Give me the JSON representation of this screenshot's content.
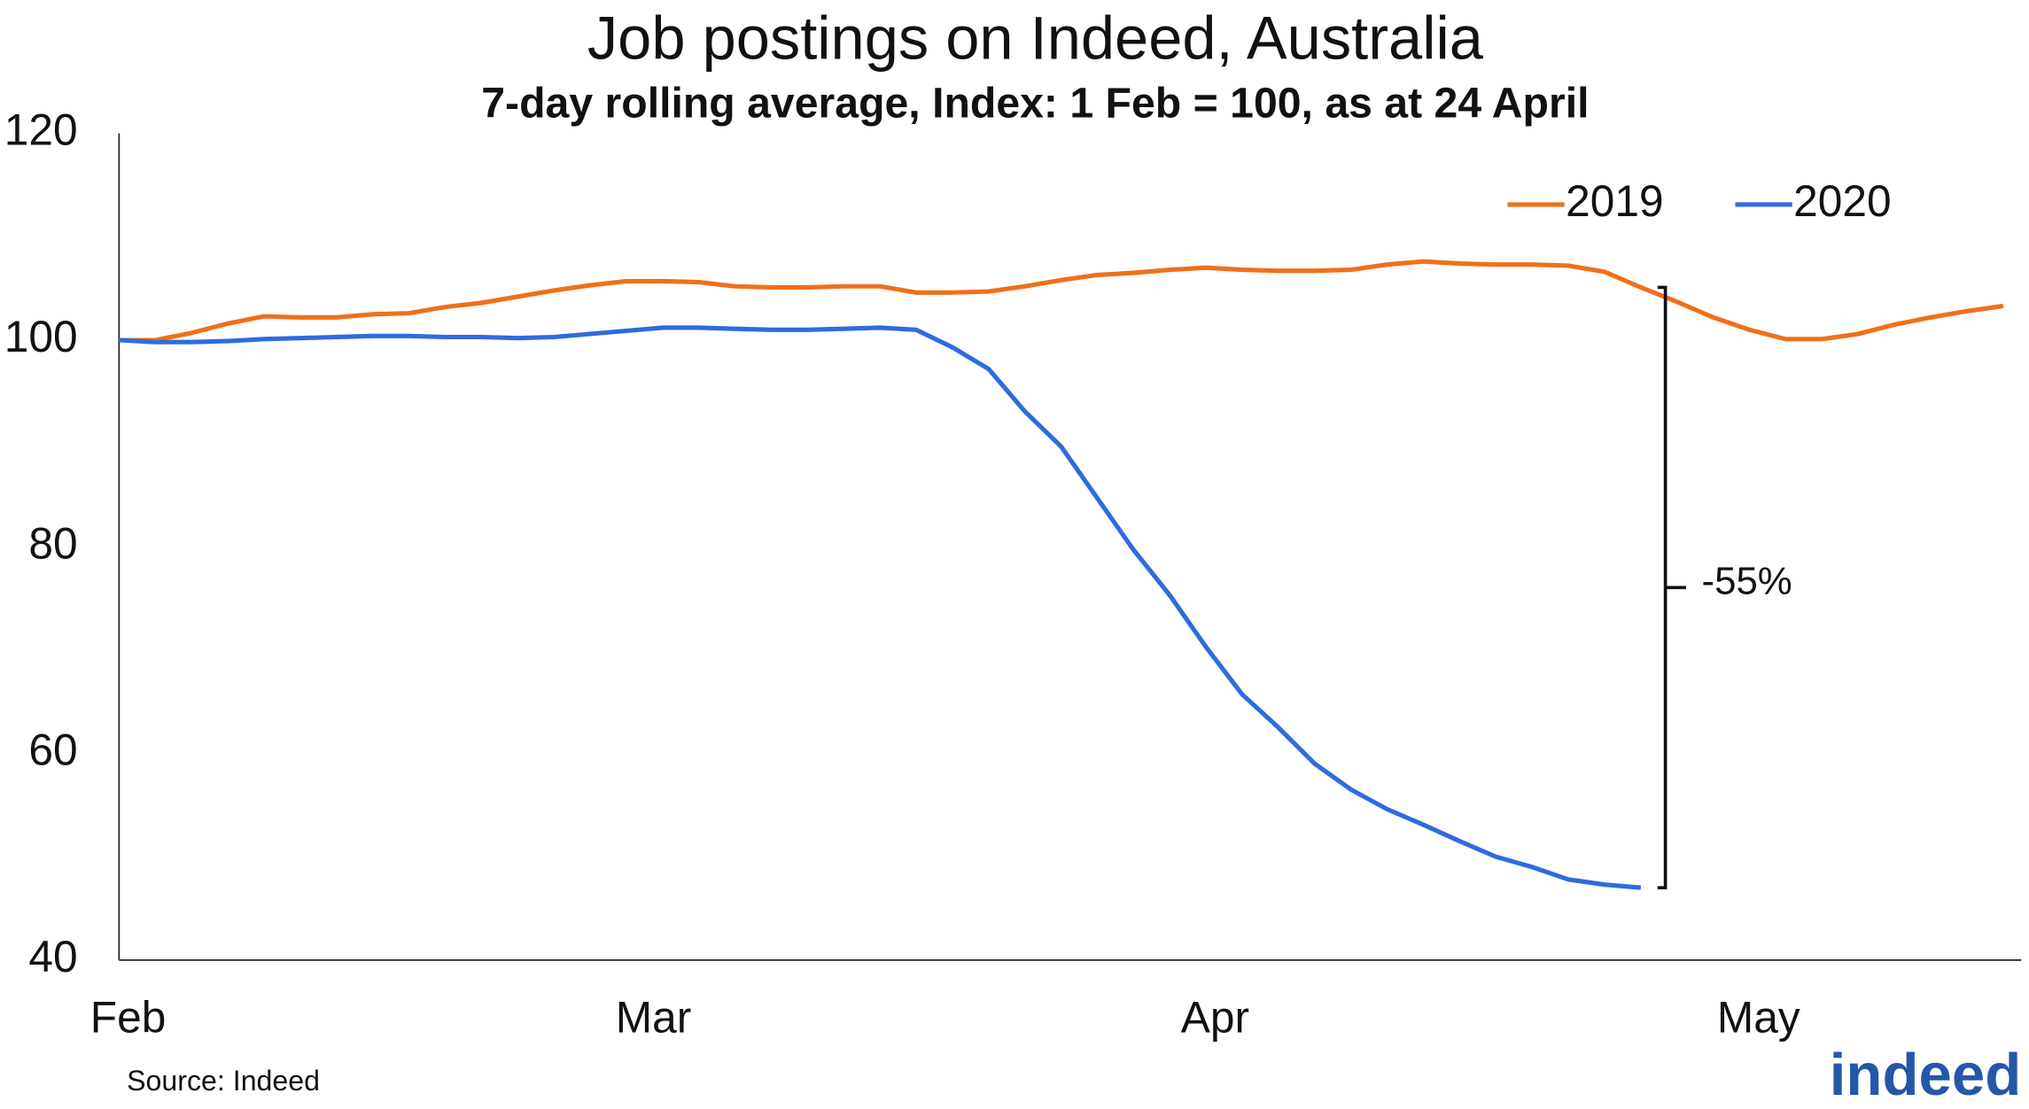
{
  "chart_data": {
    "type": "line",
    "title": "Job postings on Indeed, Australia",
    "subtitle": "7-day rolling average, Index: 1 Feb = 100, as at 24 April",
    "x": [
      0,
      2,
      4,
      6,
      8,
      10,
      12,
      14,
      16,
      18,
      20,
      22,
      24,
      26,
      28,
      30,
      32,
      34,
      36,
      38,
      40,
      42,
      44,
      46,
      48,
      50,
      52,
      54,
      56,
      58,
      60,
      62,
      64,
      66,
      68,
      70,
      72,
      74,
      76,
      78,
      80,
      82,
      84,
      86,
      88,
      90,
      92,
      94,
      96,
      98,
      100,
      102,
      104
    ],
    "series": [
      {
        "name": "2019",
        "color": "#f07019",
        "values": [
          100,
          100,
          100.7,
          101.6,
          102.3,
          102.2,
          102.2,
          102.5,
          102.6,
          103.2,
          103.6,
          104.2,
          104.8,
          105.3,
          105.7,
          105.7,
          105.6,
          105.2,
          105.1,
          105.1,
          105.2,
          105.2,
          104.6,
          104.6,
          104.7,
          105.2,
          105.8,
          106.3,
          106.5,
          106.8,
          107.0,
          106.8,
          106.7,
          106.7,
          106.8,
          107.3,
          107.6,
          107.4,
          107.3,
          107.3,
          107.2,
          106.6,
          105.1,
          103.7,
          102.2,
          101.0,
          100.1,
          100.1,
          100.6,
          101.5,
          102.2,
          102.8,
          103.3
        ]
      },
      {
        "name": "2020",
        "color": "#2f6be0",
        "values": [
          100,
          99.8,
          99.8,
          99.9,
          100.1,
          100.2,
          100.3,
          100.4,
          100.4,
          100.3,
          100.3,
          100.2,
          100.3,
          100.6,
          100.9,
          101.2,
          101.2,
          101.1,
          101.0,
          101.0,
          101.1,
          101.2,
          101.0,
          99.3,
          97.2,
          93.1,
          89.7,
          84.7,
          79.7,
          75.3,
          70.3,
          65.7,
          62.5,
          59.0,
          56.5,
          54.6,
          53.1,
          51.5,
          50.0,
          49.0,
          47.8,
          47.3,
          47.0,
          null,
          null,
          null,
          null,
          null,
          null,
          null,
          null,
          null,
          null
        ]
      }
    ],
    "xlim": [
      0,
      105
    ],
    "xticks": [
      {
        "value": 0,
        "label": "Feb"
      },
      {
        "value": 29,
        "label": "Mar"
      },
      {
        "value": 60,
        "label": "Apr"
      },
      {
        "value": 90,
        "label": "May"
      }
    ],
    "ylim": [
      40,
      120
    ],
    "yticks": [
      40,
      60,
      80,
      100,
      120
    ],
    "grid": false,
    "legend": "upper right",
    "annotation": "-55%",
    "source": "Source: Indeed",
    "logo": "indeed"
  }
}
